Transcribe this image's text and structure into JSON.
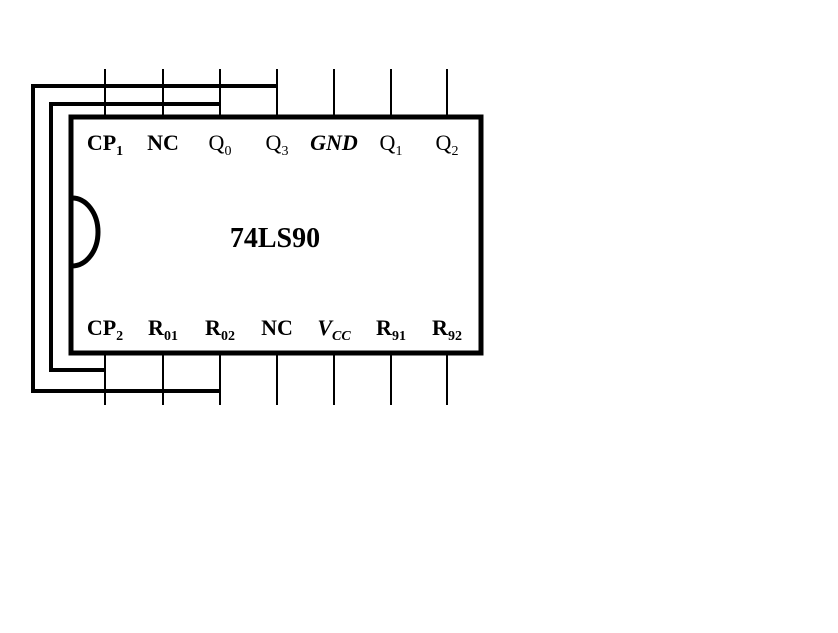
{
  "chip": {
    "name": "74LS90"
  },
  "top_pins": [
    {
      "main": "CP",
      "sub": "1",
      "bold": true,
      "italic": false
    },
    {
      "main": "NC",
      "sub": "",
      "bold": true,
      "italic": false
    },
    {
      "main": "Q",
      "sub": "0",
      "bold": false,
      "italic": false
    },
    {
      "main": "Q",
      "sub": "3",
      "bold": false,
      "italic": false
    },
    {
      "main": "GND",
      "sub": "",
      "bold": true,
      "italic": true
    },
    {
      "main": "Q",
      "sub": "1",
      "bold": false,
      "italic": false
    },
    {
      "main": "Q",
      "sub": "2",
      "bold": false,
      "italic": false
    }
  ],
  "bottom_pins": [
    {
      "main": "CP",
      "sub": "2",
      "bold": true,
      "italic": false
    },
    {
      "main": "R",
      "sub": "01",
      "bold": true,
      "italic": false
    },
    {
      "main": "R",
      "sub": "02",
      "bold": true,
      "italic": false
    },
    {
      "main": "NC",
      "sub": "",
      "bold": true,
      "italic": false
    },
    {
      "main": "V",
      "sub": "CC",
      "bold": true,
      "italic": true
    },
    {
      "main": "R",
      "sub": "91",
      "bold": true,
      "italic": false
    },
    {
      "main": "R",
      "sub": "92",
      "bold": true,
      "italic": false
    }
  ],
  "colors": {
    "ink": "#000000",
    "background": "#ffffff"
  }
}
